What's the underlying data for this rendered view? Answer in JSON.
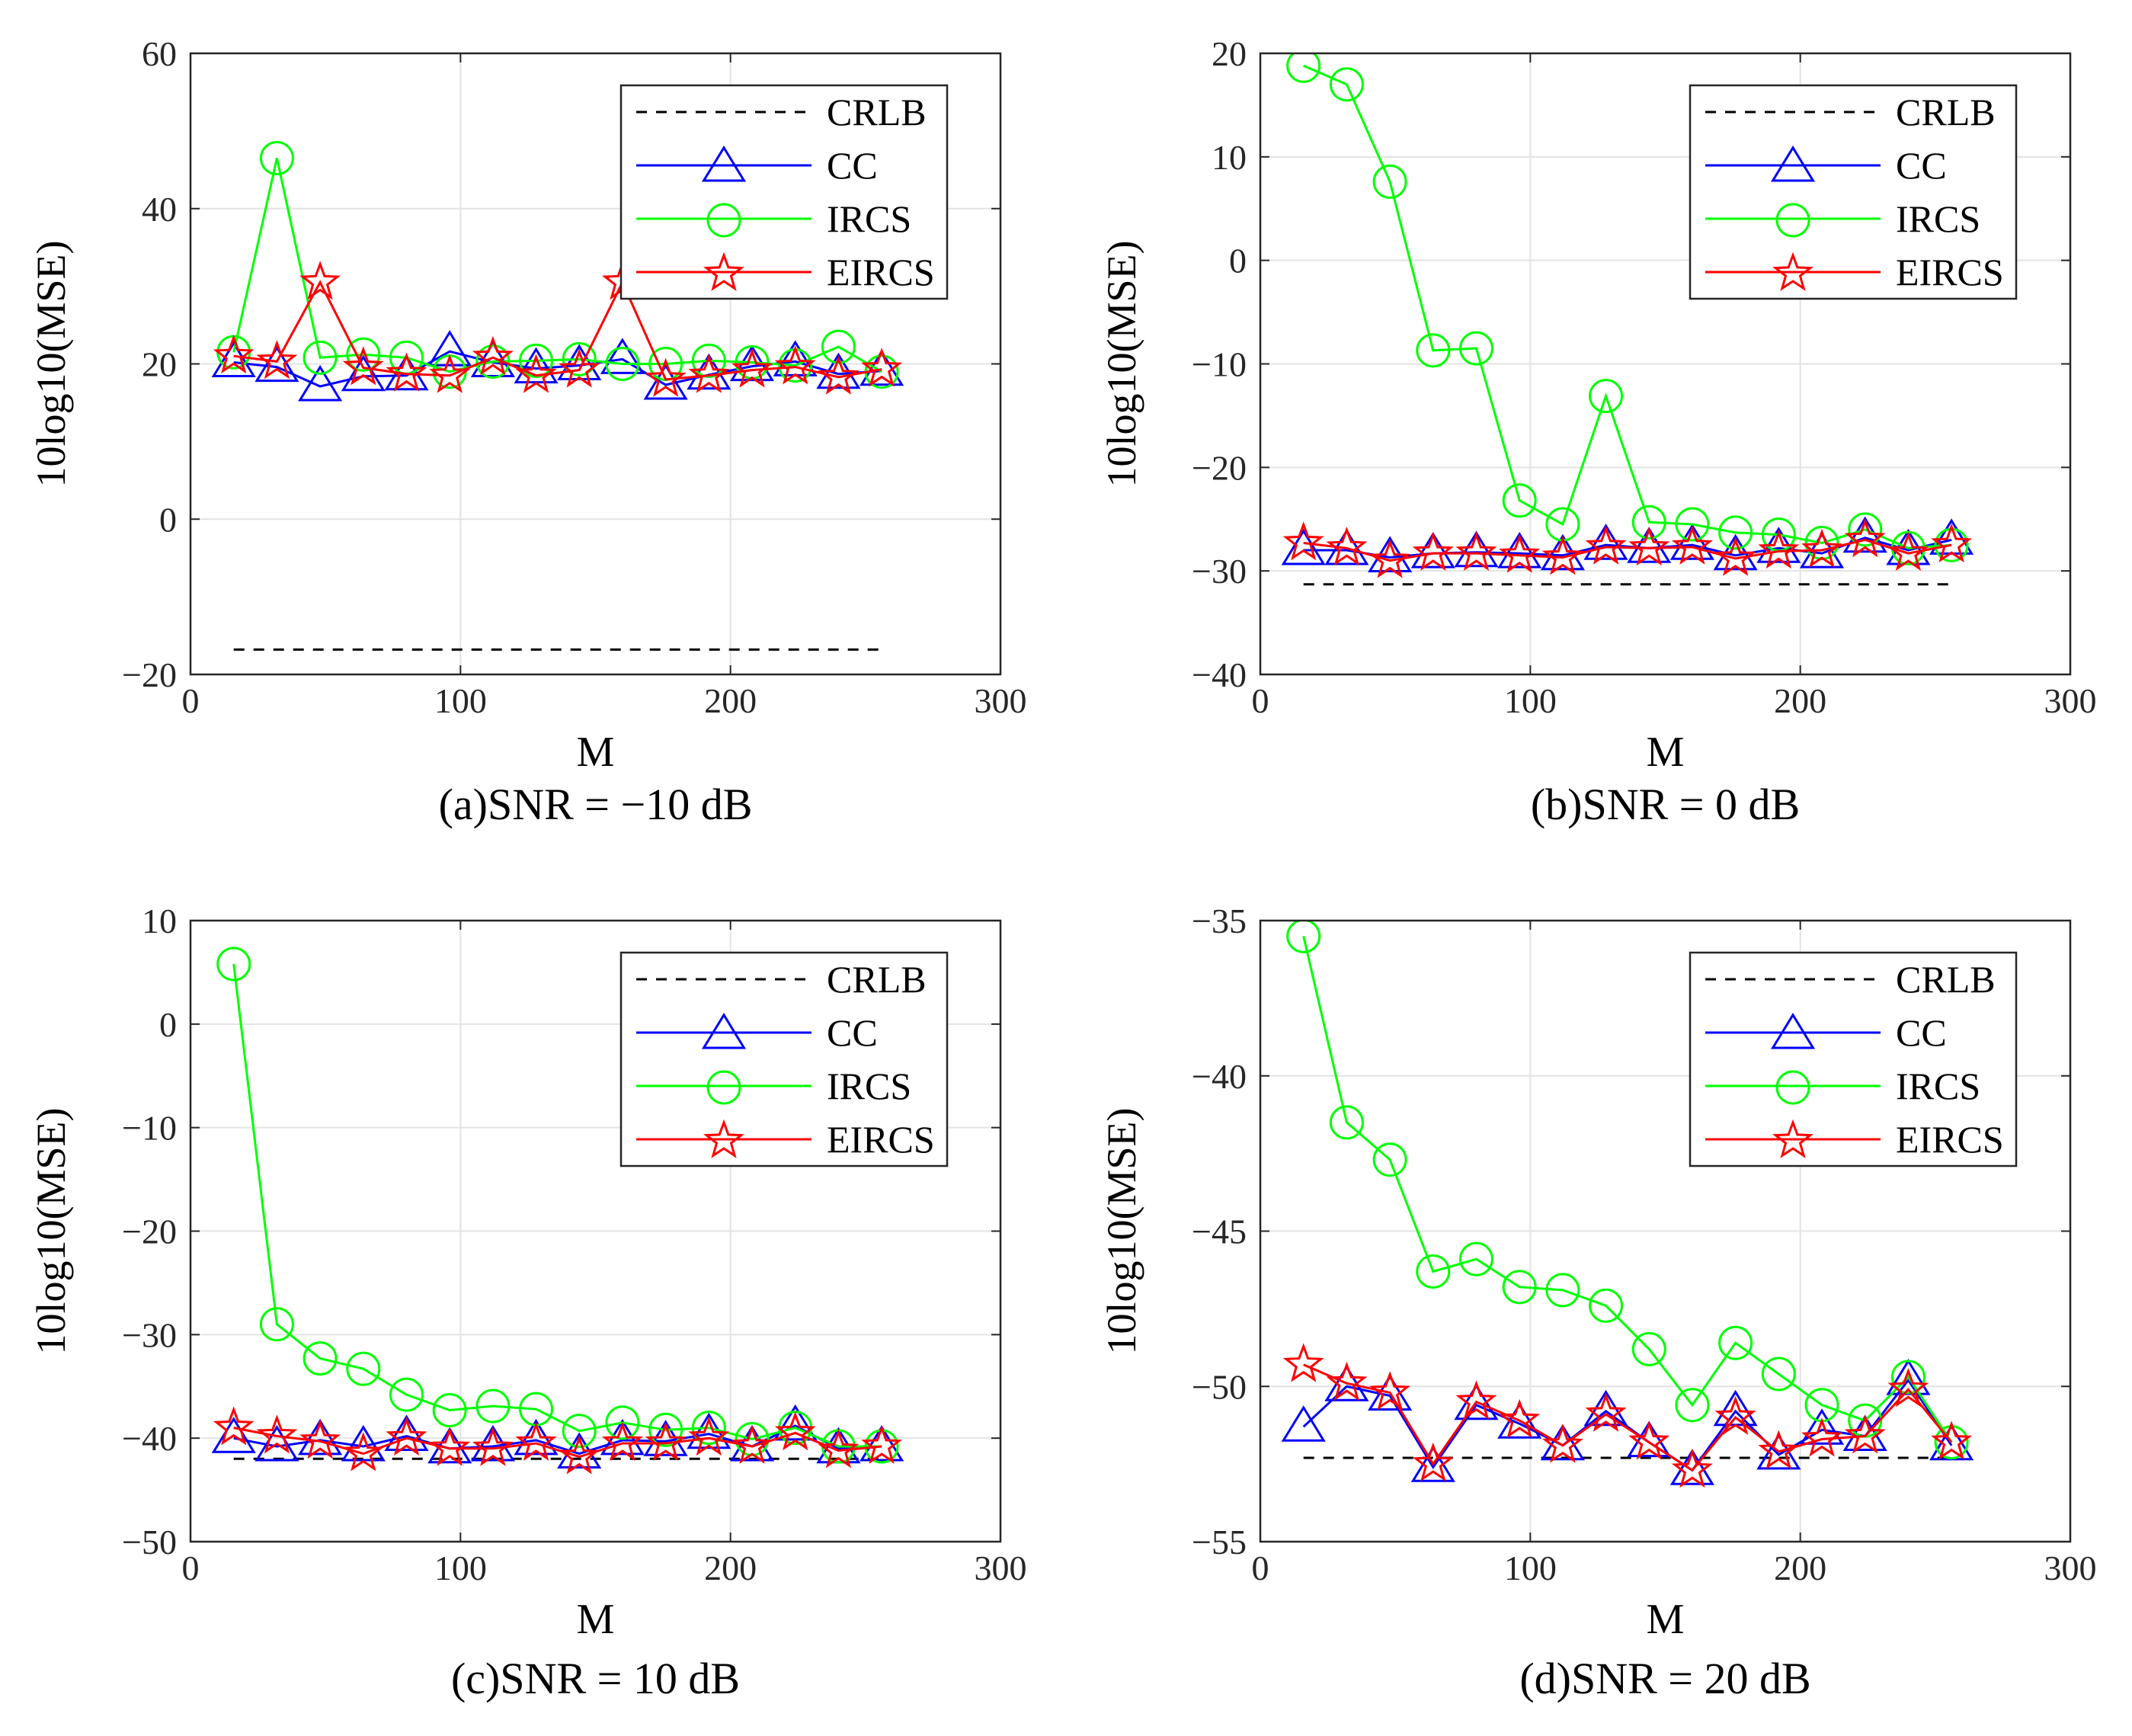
{
  "figure": {
    "colors": {
      "crlb": "#000000",
      "cc": "#0000ff",
      "ircs": "#00ff00",
      "eircs": "#ff0000",
      "grid": "#e3e3e3",
      "axis": "#262626"
    }
  },
  "chart_data": [
    {
      "type": "line",
      "caption": "(a)SNR = −10 dB",
      "xlabel": "M",
      "ylabel": "10log10(MSE)",
      "xlim": [
        0,
        300
      ],
      "ylim": [
        -20,
        60
      ],
      "xticks": [
        0,
        100,
        200,
        300
      ],
      "xtick_labels": [
        "0",
        "100",
        "200",
        "300"
      ],
      "yticks": [
        -20,
        0,
        20,
        40,
        60
      ],
      "ytick_labels": [
        "−20",
        "0",
        "20",
        "40",
        "60"
      ],
      "grid": true,
      "legend_position": "top-right",
      "x": [
        16,
        32,
        48,
        64,
        80,
        96,
        112,
        128,
        144,
        160,
        176,
        192,
        208,
        224,
        240,
        256
      ],
      "series": [
        {
          "name": "CRLB",
          "marker": "none",
          "style": "dashed",
          "values": [
            -16.8,
            -16.8,
            -16.8,
            -16.8,
            -16.8,
            -16.8,
            -16.8,
            -16.8,
            -16.8,
            -16.8,
            -16.8,
            -16.8,
            -16.8,
            -16.8,
            -16.8,
            -16.8
          ]
        },
        {
          "name": "CC",
          "marker": "triangle",
          "style": "solid",
          "values": [
            20.2,
            19.6,
            17.1,
            18.4,
            18.5,
            21.6,
            20.2,
            19.4,
            19.8,
            20.6,
            17.3,
            18.6,
            19.7,
            20.3,
            18.7,
            19.1
          ]
        },
        {
          "name": "IRCS",
          "marker": "circle",
          "style": "solid",
          "values": [
            21.5,
            46.5,
            20.8,
            21.2,
            20.8,
            19.0,
            20.3,
            20.4,
            20.6,
            20.0,
            20.0,
            20.4,
            20.2,
            19.8,
            22.2,
            19.0
          ]
        },
        {
          "name": "EIRCS",
          "marker": "star",
          "style": "solid",
          "values": [
            21.0,
            20.3,
            30.5,
            19.5,
            18.7,
            18.5,
            20.8,
            18.5,
            19.2,
            30.5,
            18.0,
            18.5,
            19.2,
            19.6,
            18.3,
            19.3
          ]
        }
      ]
    },
    {
      "type": "line",
      "caption": "(b)SNR = 0 dB",
      "xlabel": "M",
      "ylabel": "10log10(MSE)",
      "xlim": [
        0,
        300
      ],
      "ylim": [
        -40,
        20
      ],
      "xticks": [
        0,
        100,
        200,
        300
      ],
      "xtick_labels": [
        "0",
        "100",
        "200",
        "300"
      ],
      "yticks": [
        -40,
        -30,
        -20,
        -10,
        0,
        10,
        20
      ],
      "ytick_labels": [
        "−40",
        "−30",
        "−20",
        "−10",
        "0",
        "10",
        "20"
      ],
      "grid": true,
      "legend_position": "top-right",
      "x": [
        16,
        32,
        48,
        64,
        80,
        96,
        112,
        128,
        144,
        160,
        176,
        192,
        208,
        224,
        240,
        256
      ],
      "series": [
        {
          "name": "CRLB",
          "marker": "none",
          "style": "dashed",
          "values": [
            -31.3,
            -31.3,
            -31.3,
            -31.3,
            -31.3,
            -31.3,
            -31.3,
            -31.3,
            -31.3,
            -31.3,
            -31.3,
            -31.3,
            -31.3,
            -31.3,
            -31.3,
            -31.3
          ]
        },
        {
          "name": "CC",
          "marker": "triangle",
          "style": "solid",
          "values": [
            -28.0,
            -28.0,
            -28.7,
            -28.3,
            -28.2,
            -28.3,
            -28.5,
            -27.5,
            -27.8,
            -27.5,
            -28.5,
            -27.8,
            -28.3,
            -26.8,
            -28.0,
            -27.0
          ]
        },
        {
          "name": "IRCS",
          "marker": "circle",
          "style": "solid",
          "values": [
            18.8,
            17.0,
            7.6,
            -8.7,
            -8.5,
            -23.2,
            -25.5,
            -13.1,
            -25.3,
            -25.5,
            -26.3,
            -26.5,
            -27.3,
            -26.0,
            -27.8,
            -27.5
          ]
        },
        {
          "name": "EIRCS",
          "marker": "star",
          "style": "solid",
          "values": [
            -27.3,
            -27.8,
            -29.0,
            -28.3,
            -28.3,
            -28.5,
            -28.7,
            -27.7,
            -27.8,
            -27.7,
            -28.8,
            -28.1,
            -28.0,
            -27.0,
            -28.3,
            -27.5
          ]
        }
      ]
    },
    {
      "type": "line",
      "caption": "(c)SNR = 10 dB",
      "xlabel": "M",
      "ylabel": "10log10(MSE)",
      "xlim": [
        0,
        300
      ],
      "ylim": [
        -50,
        10
      ],
      "xticks": [
        0,
        100,
        200,
        300
      ],
      "xtick_labels": [
        "0",
        "100",
        "200",
        "300"
      ],
      "yticks": [
        -50,
        -40,
        -30,
        -20,
        -10,
        0,
        10
      ],
      "ytick_labels": [
        "−50",
        "−40",
        "−30",
        "−20",
        "−10",
        "0",
        "10"
      ],
      "grid": true,
      "legend_position": "top-right",
      "x": [
        16,
        32,
        48,
        64,
        80,
        96,
        112,
        128,
        144,
        160,
        176,
        192,
        208,
        224,
        240,
        256
      ],
      "series": [
        {
          "name": "CRLB",
          "marker": "none",
          "style": "dashed",
          "values": [
            -42.0,
            -42.0,
            -42.0,
            -42.0,
            -42.0,
            -42.0,
            -42.0,
            -42.0,
            -42.0,
            -42.0,
            -42.0,
            -42.0,
            -42.0,
            -42.0,
            -42.0,
            -42.0
          ]
        },
        {
          "name": "CC",
          "marker": "triangle",
          "style": "solid",
          "values": [
            -40.0,
            -40.8,
            -40.2,
            -40.8,
            -39.8,
            -41.0,
            -40.8,
            -40.2,
            -41.5,
            -40.2,
            -40.3,
            -39.6,
            -40.8,
            -38.8,
            -41.0,
            -40.8
          ]
        },
        {
          "name": "IRCS",
          "marker": "circle",
          "style": "solid",
          "values": [
            5.8,
            -29.0,
            -32.3,
            -33.3,
            -35.8,
            -37.3,
            -36.9,
            -37.2,
            -39.3,
            -38.5,
            -39.2,
            -39.0,
            -40.1,
            -39.0,
            -40.8,
            -40.8
          ]
        },
        {
          "name": "EIRCS",
          "marker": "star",
          "style": "solid",
          "values": [
            -39.0,
            -39.8,
            -40.3,
            -41.5,
            -40.0,
            -41.0,
            -41.0,
            -40.5,
            -41.8,
            -40.5,
            -40.5,
            -40.0,
            -40.8,
            -39.5,
            -41.2,
            -40.8
          ]
        }
      ]
    },
    {
      "type": "line",
      "caption": "(d)SNR = 20 dB",
      "xlabel": "M",
      "ylabel": "10log10(MSE)",
      "xlim": [
        0,
        300
      ],
      "ylim": [
        -55,
        -35
      ],
      "xticks": [
        0,
        100,
        200,
        300
      ],
      "xtick_labels": [
        "0",
        "100",
        "200",
        "300"
      ],
      "yticks": [
        -55,
        -50,
        -45,
        -40,
        -35
      ],
      "ytick_labels": [
        "−55",
        "−50",
        "−45",
        "−40",
        "−35"
      ],
      "grid": true,
      "legend_position": "top-right",
      "x": [
        16,
        32,
        48,
        64,
        80,
        96,
        112,
        128,
        144,
        160,
        176,
        192,
        208,
        224,
        240,
        256
      ],
      "series": [
        {
          "name": "CRLB",
          "marker": "none",
          "style": "dashed",
          "values": [
            -52.3,
            -52.3,
            -52.3,
            -52.3,
            -52.3,
            -52.3,
            -52.3,
            -52.3,
            -52.3,
            -52.3,
            -52.3,
            -52.3,
            -52.3,
            -52.3,
            -52.3,
            -52.3
          ]
        },
        {
          "name": "CC",
          "marker": "triangle",
          "style": "solid",
          "values": [
            -51.3,
            -50.0,
            -50.3,
            -52.6,
            -50.6,
            -51.2,
            -51.9,
            -50.8,
            -51.8,
            -52.7,
            -50.8,
            -52.2,
            -51.4,
            -51.6,
            -49.8,
            -51.9
          ]
        },
        {
          "name": "IRCS",
          "marker": "circle",
          "style": "solid",
          "values": [
            -35.5,
            -41.5,
            -42.7,
            -46.3,
            -45.9,
            -46.8,
            -46.9,
            -47.4,
            -48.8,
            -50.6,
            -48.6,
            -49.6,
            -50.6,
            -51.1,
            -49.7,
            -51.8
          ]
        },
        {
          "name": "EIRCS",
          "marker": "star",
          "style": "solid",
          "values": [
            -49.3,
            -49.9,
            -50.2,
            -52.5,
            -50.5,
            -51.1,
            -51.9,
            -50.9,
            -51.8,
            -52.7,
            -51.0,
            -52.1,
            -51.7,
            -51.6,
            -50.1,
            -51.8
          ]
        }
      ]
    }
  ]
}
